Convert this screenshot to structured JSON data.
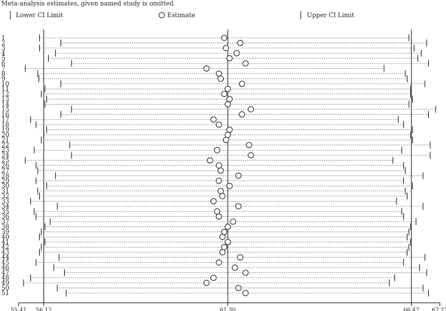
{
  "chart_data": {
    "type": "forest",
    "title": "Meta-analysis estimates, given named study is omitted",
    "legend": {
      "lower": "Lower CI Limit",
      "estimate": "Estimate",
      "upper": "Upper CI Limit",
      "placement": "top"
    },
    "xlim": [
      55.41,
      67.27
    ],
    "xticks": [
      "55.41",
      "56.12",
      "61.30",
      "66.47",
      "67.27"
    ],
    "reference_lines": [
      56.12,
      61.3,
      66.47
    ],
    "studies": [
      {
        "label": "1",
        "estimate": 61.2,
        "lower": 56.0,
        "upper": 66.4
      },
      {
        "label": "2",
        "estimate": 61.65,
        "lower": 56.6,
        "upper": 66.9
      },
      {
        "label": "3",
        "estimate": 61.25,
        "lower": 56.0,
        "upper": 66.55
      },
      {
        "label": "4",
        "estimate": 61.55,
        "lower": 56.45,
        "upper": 66.75
      },
      {
        "label": "5",
        "estimate": 61.35,
        "lower": 56.25,
        "upper": 66.65
      },
      {
        "label": "6",
        "estimate": 61.8,
        "lower": 56.9,
        "upper": 66.95
      },
      {
        "label": "7",
        "estimate": 60.7,
        "lower": 55.6,
        "upper": 65.7
      },
      {
        "label": "8",
        "estimate": 61.05,
        "lower": 55.95,
        "upper": 66.3
      },
      {
        "label": "9",
        "estimate": 61.1,
        "lower": 55.98,
        "upper": 66.35
      },
      {
        "label": "10",
        "estimate": 61.7,
        "lower": 56.6,
        "upper": 66.85
      },
      {
        "label": "11",
        "estimate": 61.3,
        "lower": 56.15,
        "upper": 66.45
      },
      {
        "label": "12",
        "estimate": 61.2,
        "lower": 56.05,
        "upper": 66.45
      },
      {
        "label": "13",
        "estimate": 61.35,
        "lower": 56.2,
        "upper": 66.5
      },
      {
        "label": "14",
        "estimate": 61.3,
        "lower": 56.15,
        "upper": 66.4
      },
      {
        "label": "15",
        "estimate": 61.95,
        "lower": 56.9,
        "upper": 67.15
      },
      {
        "label": "16",
        "estimate": 61.7,
        "lower": 56.6,
        "upper": 66.95
      },
      {
        "label": "17",
        "estimate": 60.9,
        "lower": 55.75,
        "upper": 66.1
      },
      {
        "label": "18",
        "estimate": 61.05,
        "lower": 55.9,
        "upper": 66.25
      },
      {
        "label": "19",
        "estimate": 61.35,
        "lower": 56.2,
        "upper": 66.5
      },
      {
        "label": "20",
        "estimate": 61.3,
        "lower": 56.12,
        "upper": 66.45
      },
      {
        "label": "21",
        "estimate": 61.25,
        "lower": 56.05,
        "upper": 66.5
      },
      {
        "label": "22",
        "estimate": 61.9,
        "lower": 56.85,
        "upper": 67.0
      },
      {
        "label": "23",
        "estimate": 61.0,
        "lower": 55.85,
        "upper": 66.2
      },
      {
        "label": "24",
        "estimate": 61.95,
        "lower": 56.9,
        "upper": 67.0
      },
      {
        "label": "25",
        "estimate": 60.8,
        "lower": 55.6,
        "upper": 65.95
      },
      {
        "label": "26",
        "estimate": 61.05,
        "lower": 55.9,
        "upper": 66.25
      },
      {
        "label": "27",
        "estimate": 61.1,
        "lower": 55.95,
        "upper": 66.3
      },
      {
        "label": "28",
        "estimate": 61.6,
        "lower": 56.45,
        "upper": 66.8
      },
      {
        "label": "29",
        "estimate": 61.05,
        "lower": 55.9,
        "upper": 66.25
      },
      {
        "label": "30",
        "estimate": 61.35,
        "lower": 56.2,
        "upper": 66.5
      },
      {
        "label": "31",
        "estimate": 61.1,
        "lower": 55.95,
        "upper": 66.3
      },
      {
        "label": "32",
        "estimate": 61.15,
        "lower": 56.0,
        "upper": 66.35
      },
      {
        "label": "33",
        "estimate": 60.9,
        "lower": 55.75,
        "upper": 66.05
      },
      {
        "label": "34",
        "estimate": 61.6,
        "lower": 56.5,
        "upper": 66.8
      },
      {
        "label": "35",
        "estimate": 61.0,
        "lower": 55.85,
        "upper": 66.2
      },
      {
        "label": "36",
        "estimate": 61.05,
        "lower": 55.9,
        "upper": 66.25
      },
      {
        "label": "37",
        "estimate": 61.45,
        "lower": 56.3,
        "upper": 66.6
      },
      {
        "label": "38",
        "estimate": 61.3,
        "lower": 56.15,
        "upper": 66.45
      },
      {
        "label": "39",
        "estimate": 61.2,
        "lower": 56.05,
        "upper": 66.4
      },
      {
        "label": "40",
        "estimate": 61.15,
        "lower": 56.0,
        "upper": 66.35
      },
      {
        "label": "41",
        "estimate": 61.3,
        "lower": 56.15,
        "upper": 66.45
      },
      {
        "label": "42",
        "estimate": 61.2,
        "lower": 56.05,
        "upper": 66.4
      },
      {
        "label": "43",
        "estimate": 61.15,
        "lower": 56.0,
        "upper": 66.35
      },
      {
        "label": "44",
        "estimate": 61.65,
        "lower": 56.55,
        "upper": 66.85
      },
      {
        "label": "45",
        "estimate": 61.05,
        "lower": 55.9,
        "upper": 66.25
      },
      {
        "label": "46",
        "estimate": 61.5,
        "lower": 56.4,
        "upper": 66.7
      },
      {
        "label": "47",
        "estimate": 61.8,
        "lower": 56.7,
        "upper": 66.9
      },
      {
        "label": "48",
        "estimate": 60.9,
        "lower": 55.75,
        "upper": 66.0
      },
      {
        "label": "49",
        "estimate": 60.7,
        "lower": 55.55,
        "upper": 65.85
      },
      {
        "label": "50",
        "estimate": 61.6,
        "lower": 56.5,
        "upper": 66.8
      },
      {
        "label": "51",
        "estimate": 61.8,
        "lower": 56.75,
        "upper": 66.95
      }
    ]
  }
}
